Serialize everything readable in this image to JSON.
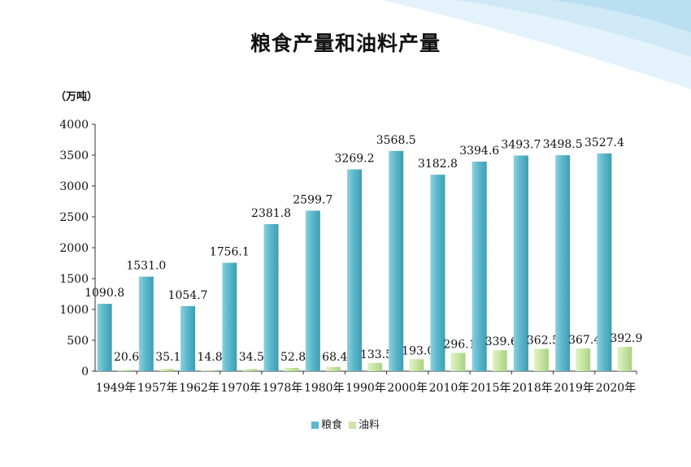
{
  "chart_data": {
    "type": "bar",
    "title": "粮食产量和油料产量",
    "unit_label": "（万吨）",
    "categories": [
      "1949年",
      "1957年",
      "1962年",
      "1970年",
      "1978年",
      "1980年",
      "1990年",
      "2000年",
      "2010年",
      "2015年",
      "2018年",
      "2019年",
      "2020年"
    ],
    "series": [
      {
        "name": "粮食",
        "color": "#5bb8cc",
        "values": [
          1090.8,
          1531.0,
          1054.7,
          1756.1,
          2381.8,
          2599.7,
          3269.2,
          3568.5,
          3182.8,
          3394.6,
          3493.7,
          3498.5,
          3527.4
        ]
      },
      {
        "name": "油料",
        "color": "#c8e6a4",
        "values": [
          20.6,
          35.1,
          14.8,
          34.5,
          52.8,
          68.4,
          133.5,
          193.0,
          296.1,
          339.6,
          362.5,
          367.4,
          392.9
        ]
      }
    ],
    "value_labels": [
      [
        "1090.8",
        "1531.0",
        "1054.7",
        "1756.1",
        "2381.8",
        "2599.7",
        "3269.2",
        "3568.5",
        "3182.8",
        "3394.6",
        "3493.7",
        "3498.5",
        "3527.4"
      ],
      [
        "20.6",
        "35.1",
        "14.8",
        "34.5",
        "52.8",
        "68.4",
        "133.5",
        "193.0",
        "296.1",
        "339.6",
        "362.5",
        "367.4",
        "392.9"
      ]
    ],
    "ylim": [
      0,
      4000
    ],
    "yticks": [
      "0",
      "500",
      "1000",
      "1500",
      "2000",
      "2500",
      "3000",
      "3500",
      "4000"
    ],
    "grid": false,
    "legend_position": "bottom"
  }
}
